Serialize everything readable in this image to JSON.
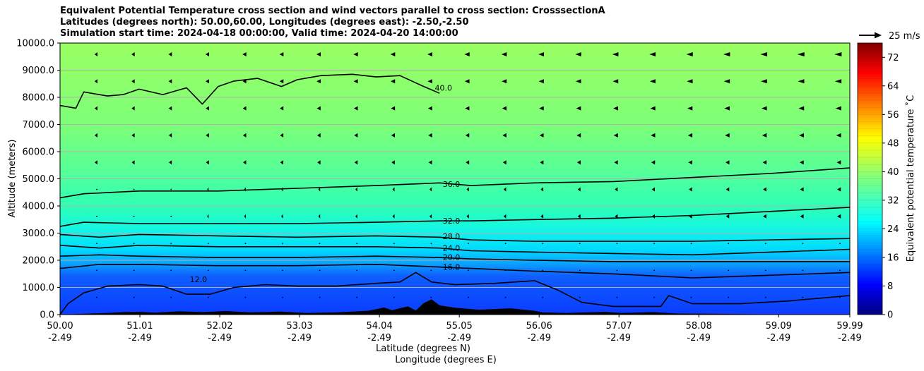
{
  "chart_data": {
    "type": "contour",
    "title_lines": [
      "Equivalent Potential Temperature cross section and wind vectors parallel to cross section: CrosssectionA",
      "Latitudes (degrees north): 50.00,60.00, Longitudes (degrees east): -2.50,-2.50",
      "Simulation start time: 2024-04-18 00:00:00, Valid time: 2024-04-20 14:00:00"
    ],
    "ylabel": "Altitude (meters)",
    "xlabel_lat": "Latitude (degrees N)",
    "xlabel_lon": "Longitude (degrees E)",
    "ylim": [
      0,
      10000
    ],
    "xlim": [
      50.0,
      59.99
    ],
    "yticks": [
      "0.0",
      "1000.0",
      "2000.0",
      "3000.0",
      "4000.0",
      "5000.0",
      "6000.0",
      "7000.0",
      "8000.0",
      "9000.0",
      "10000.0"
    ],
    "ytick_values": [
      0,
      1000,
      2000,
      3000,
      4000,
      5000,
      6000,
      7000,
      8000,
      9000,
      10000
    ],
    "xticks_lat": [
      "50.00",
      "51.01",
      "52.02",
      "53.03",
      "54.04",
      "55.05",
      "56.06",
      "57.07",
      "58.08",
      "59.09",
      "59.99"
    ],
    "xticks_lon": [
      "-2.49",
      "-2.49",
      "-2.49",
      "-2.49",
      "-2.49",
      "-2.49",
      "-2.49",
      "-2.49",
      "-2.49",
      "-2.49",
      "-2.49"
    ],
    "xtick_values": [
      50.0,
      51.01,
      52.02,
      53.03,
      54.04,
      55.05,
      56.06,
      57.07,
      58.08,
      59.09,
      59.99
    ],
    "colorbar": {
      "label": "Equivalent potential temperature ˚C",
      "min": 0,
      "max": 76,
      "ticks": [
        "0",
        "8",
        "16",
        "24",
        "32",
        "40",
        "48",
        "56",
        "64",
        "72"
      ],
      "tick_values": [
        0,
        8,
        16,
        24,
        32,
        40,
        48,
        56,
        64,
        72
      ],
      "colormap": "jet"
    },
    "contour_levels": [
      {
        "value": 40.0,
        "label": "40.0",
        "label_at": [
          54.85,
          8350
        ],
        "points": [
          [
            50.0,
            7700
          ],
          [
            50.2,
            7600
          ],
          [
            50.3,
            8200
          ],
          [
            50.6,
            8050
          ],
          [
            50.8,
            8100
          ],
          [
            51.0,
            8300
          ],
          [
            51.3,
            8100
          ],
          [
            51.6,
            8350
          ],
          [
            51.8,
            7750
          ],
          [
            52.0,
            8400
          ],
          [
            52.2,
            8600
          ],
          [
            52.5,
            8700
          ],
          [
            52.8,
            8400
          ],
          [
            53.0,
            8650
          ],
          [
            53.3,
            8800
          ],
          [
            53.7,
            8850
          ],
          [
            54.0,
            8750
          ],
          [
            54.3,
            8800
          ],
          [
            54.6,
            8400
          ],
          [
            54.8,
            8150
          ]
        ]
      },
      {
        "value": 36.0,
        "label": "36.0",
        "label_at": [
          54.95,
          4800
        ],
        "points": [
          [
            50.0,
            4300
          ],
          [
            50.3,
            4450
          ],
          [
            51.0,
            4550
          ],
          [
            52.0,
            4550
          ],
          [
            53.0,
            4650
          ],
          [
            54.0,
            4750
          ],
          [
            54.8,
            4850
          ],
          [
            55.2,
            4750
          ],
          [
            56.0,
            4850
          ],
          [
            57.0,
            4900
          ],
          [
            58.0,
            5050
          ],
          [
            59.0,
            5200
          ],
          [
            59.99,
            5400
          ]
        ]
      },
      {
        "value": 32.0,
        "label": "32.0",
        "label_at": [
          54.95,
          3450
        ],
        "points": [
          [
            50.0,
            3250
          ],
          [
            50.3,
            3400
          ],
          [
            51.0,
            3350
          ],
          [
            52.0,
            3350
          ],
          [
            53.0,
            3350
          ],
          [
            54.0,
            3400
          ],
          [
            54.8,
            3450
          ],
          [
            55.2,
            3450
          ],
          [
            56.0,
            3500
          ],
          [
            57.0,
            3550
          ],
          [
            58.0,
            3650
          ],
          [
            59.0,
            3800
          ],
          [
            59.99,
            3950
          ]
        ]
      },
      {
        "value": 28.0,
        "label": "28.0",
        "label_at": [
          54.95,
          2880
        ],
        "points": [
          [
            50.0,
            2950
          ],
          [
            50.5,
            2850
          ],
          [
            51.0,
            2950
          ],
          [
            52.0,
            2900
          ],
          [
            53.0,
            2850
          ],
          [
            54.0,
            2900
          ],
          [
            54.8,
            2850
          ],
          [
            55.2,
            2750
          ],
          [
            56.0,
            2700
          ],
          [
            57.0,
            2700
          ],
          [
            58.0,
            2700
          ],
          [
            59.0,
            2750
          ],
          [
            59.99,
            2800
          ]
        ]
      },
      {
        "value": 24.0,
        "label": "24.0",
        "label_at": [
          54.95,
          2460
        ],
        "points": [
          [
            50.0,
            2550
          ],
          [
            50.5,
            2450
          ],
          [
            51.0,
            2550
          ],
          [
            52.0,
            2500
          ],
          [
            53.0,
            2500
          ],
          [
            54.0,
            2500
          ],
          [
            54.8,
            2450
          ],
          [
            55.2,
            2350
          ],
          [
            56.0,
            2300
          ],
          [
            57.0,
            2250
          ],
          [
            58.0,
            2200
          ],
          [
            59.0,
            2300
          ],
          [
            59.99,
            2400
          ]
        ]
      },
      {
        "value": 20.0,
        "label": "20.0",
        "label_at": [
          54.95,
          2120
        ],
        "points": [
          [
            50.0,
            2150
          ],
          [
            50.5,
            2200
          ],
          [
            51.0,
            2150
          ],
          [
            52.0,
            2100
          ],
          [
            53.0,
            2100
          ],
          [
            54.0,
            2150
          ],
          [
            54.8,
            2100
          ],
          [
            55.2,
            2050
          ],
          [
            56.0,
            2000
          ],
          [
            57.0,
            1950
          ],
          [
            58.0,
            1950
          ],
          [
            59.0,
            1950
          ],
          [
            59.99,
            1950
          ]
        ]
      },
      {
        "value": 16.0,
        "label": "16.0",
        "label_at": [
          54.95,
          1750
        ],
        "points": [
          [
            50.0,
            1700
          ],
          [
            50.5,
            1850
          ],
          [
            51.0,
            1850
          ],
          [
            52.0,
            1800
          ],
          [
            53.0,
            1800
          ],
          [
            54.0,
            1850
          ],
          [
            54.8,
            1750
          ],
          [
            55.2,
            1700
          ],
          [
            56.0,
            1600
          ],
          [
            57.0,
            1500
          ],
          [
            58.0,
            1350
          ],
          [
            59.0,
            1450
          ],
          [
            59.99,
            1550
          ]
        ]
      },
      {
        "value": 12.0,
        "label": "12.0",
        "label_at": [
          51.75,
          1300
        ],
        "points": [
          [
            50.0,
            0
          ],
          [
            50.1,
            400
          ],
          [
            50.3,
            800
          ],
          [
            50.6,
            1050
          ],
          [
            51.0,
            1100
          ],
          [
            51.3,
            1050
          ],
          [
            51.6,
            750
          ],
          [
            51.9,
            750
          ],
          [
            52.2,
            1000
          ],
          [
            52.6,
            1100
          ],
          [
            53.0,
            1050
          ],
          [
            53.5,
            1050
          ],
          [
            54.0,
            1150
          ],
          [
            54.3,
            1200
          ],
          [
            54.5,
            1550
          ],
          [
            54.7,
            1200
          ],
          [
            55.0,
            1100
          ],
          [
            55.5,
            1150
          ],
          [
            56.0,
            1250
          ],
          [
            56.3,
            900
          ],
          [
            56.6,
            450
          ],
          [
            57.0,
            300
          ],
          [
            57.6,
            300
          ],
          [
            57.7,
            700
          ],
          [
            58.0,
            400
          ],
          [
            58.6,
            400
          ],
          [
            59.2,
            500
          ],
          [
            59.99,
            700
          ]
        ]
      }
    ]
  }
}
